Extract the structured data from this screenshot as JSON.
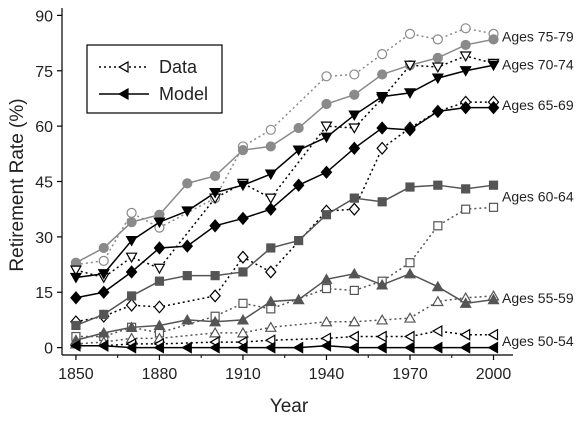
{
  "chart_data": {
    "type": "line",
    "xlabel": "Year",
    "ylabel": "Retirement Rate (%)",
    "xlim": [
      1845,
      2007
    ],
    "ylim": [
      -2,
      92
    ],
    "x_ticks": [
      1850,
      1880,
      1910,
      1940,
      1970,
      2000
    ],
    "y_ticks": [
      0,
      15,
      30,
      45,
      60,
      75,
      90
    ],
    "legend": {
      "placement": "top-left",
      "entries": [
        {
          "label": "Data",
          "style": "dotted",
          "marker": "open-left-triangle"
        },
        {
          "label": "Model",
          "style": "solid",
          "marker": "filled-left-triangle"
        }
      ]
    },
    "x": [
      1850,
      1860,
      1870,
      1880,
      1890,
      1900,
      1910,
      1920,
      1930,
      1940,
      1950,
      1960,
      1970,
      1980,
      1990,
      2000
    ],
    "groups": [
      {
        "label": "Ages 75-79",
        "color": "#8a8a8a",
        "marker": "circle",
        "data_x": [
          1850,
          1860,
          1870,
          1880,
          1900,
          1910,
          1920,
          1940,
          1950,
          1960,
          1970,
          1980,
          1990,
          2000
        ],
        "data": [
          22.5,
          23.5,
          36.5,
          32.5,
          40.5,
          54.5,
          59,
          73.5,
          74,
          79.5,
          85,
          83.5,
          86.5,
          85
        ],
        "model": [
          23,
          27,
          34,
          36,
          44.5,
          46.5,
          53.5,
          54.5,
          59.5,
          66,
          68.5,
          74,
          76.5,
          78.5,
          82,
          83.5
        ]
      },
      {
        "label": "Ages 70-74",
        "color": "#000000",
        "marker": "down-triangle",
        "data_x": [
          1850,
          1860,
          1870,
          1880,
          1900,
          1910,
          1920,
          1940,
          1950,
          1960,
          1970,
          1980,
          1990,
          2000
        ],
        "data": [
          21,
          19,
          24.5,
          21.5,
          40.5,
          44.5,
          40.5,
          60,
          59.5,
          67.5,
          76.5,
          76,
          79,
          77
        ],
        "model": [
          19,
          20,
          29,
          34,
          37,
          42,
          44,
          47,
          53.5,
          57,
          63,
          68,
          69,
          73,
          75,
          76.5
        ]
      },
      {
        "label": "Ages 65-69",
        "color": "#000000",
        "marker": "diamond",
        "data_x": [
          1850,
          1860,
          1870,
          1880,
          1900,
          1910,
          1920,
          1940,
          1950,
          1960,
          1970,
          1980,
          1990,
          2000
        ],
        "data": [
          7,
          8.5,
          11.5,
          11,
          14,
          24.5,
          20.5,
          37,
          37.5,
          54,
          59.5,
          64,
          66.5,
          66.5
        ],
        "model": [
          13.5,
          15,
          20.5,
          27,
          27.5,
          33,
          35,
          37.5,
          44,
          47.5,
          54,
          59.5,
          59,
          64,
          65,
          65
        ]
      },
      {
        "label": "Ages 60-64",
        "color": "#555555",
        "marker": "square",
        "data_x": [
          1850,
          1860,
          1870,
          1880,
          1900,
          1910,
          1920,
          1940,
          1950,
          1960,
          1970,
          1980,
          1990,
          2000
        ],
        "data": [
          3,
          3,
          5.5,
          4,
          8.5,
          12,
          10.5,
          16,
          15.5,
          18,
          23,
          33,
          37.5,
          38
        ],
        "model": [
          6,
          9,
          14,
          18,
          19.5,
          19.5,
          20.5,
          27,
          29,
          36,
          40.5,
          39.5,
          43.5,
          44,
          43,
          44
        ]
      },
      {
        "label": "Ages 55-59",
        "color": "#555555",
        "marker": "up-triangle",
        "data_x": [
          1850,
          1860,
          1870,
          1880,
          1900,
          1910,
          1920,
          1940,
          1950,
          1960,
          1970,
          1980,
          1990,
          2000
        ],
        "data": [
          1,
          1.5,
          2.5,
          2.5,
          4,
          4,
          5.5,
          7,
          7,
          7.5,
          8,
          12.5,
          13.5,
          14
        ],
        "model": [
          2,
          4,
          5.5,
          6,
          7.5,
          7,
          7.5,
          12.5,
          13,
          18.5,
          20,
          17,
          20,
          16.5,
          12,
          13
        ]
      },
      {
        "label": "Ages 50-54",
        "color": "#000000",
        "marker": "left-triangle",
        "data_x": [
          1850,
          1860,
          1870,
          1880,
          1900,
          1910,
          1920,
          1940,
          1950,
          1960,
          1970,
          1980,
          1990,
          2000
        ],
        "data": [
          0.5,
          0.5,
          1,
          1,
          1.5,
          1.5,
          2,
          2.5,
          3,
          3,
          3,
          4.5,
          3.5,
          3.5
        ],
        "model": [
          0.5,
          0.5,
          0,
          0,
          0,
          0,
          0,
          0,
          0,
          0.5,
          0,
          0,
          0,
          0,
          0,
          0
        ]
      }
    ]
  }
}
